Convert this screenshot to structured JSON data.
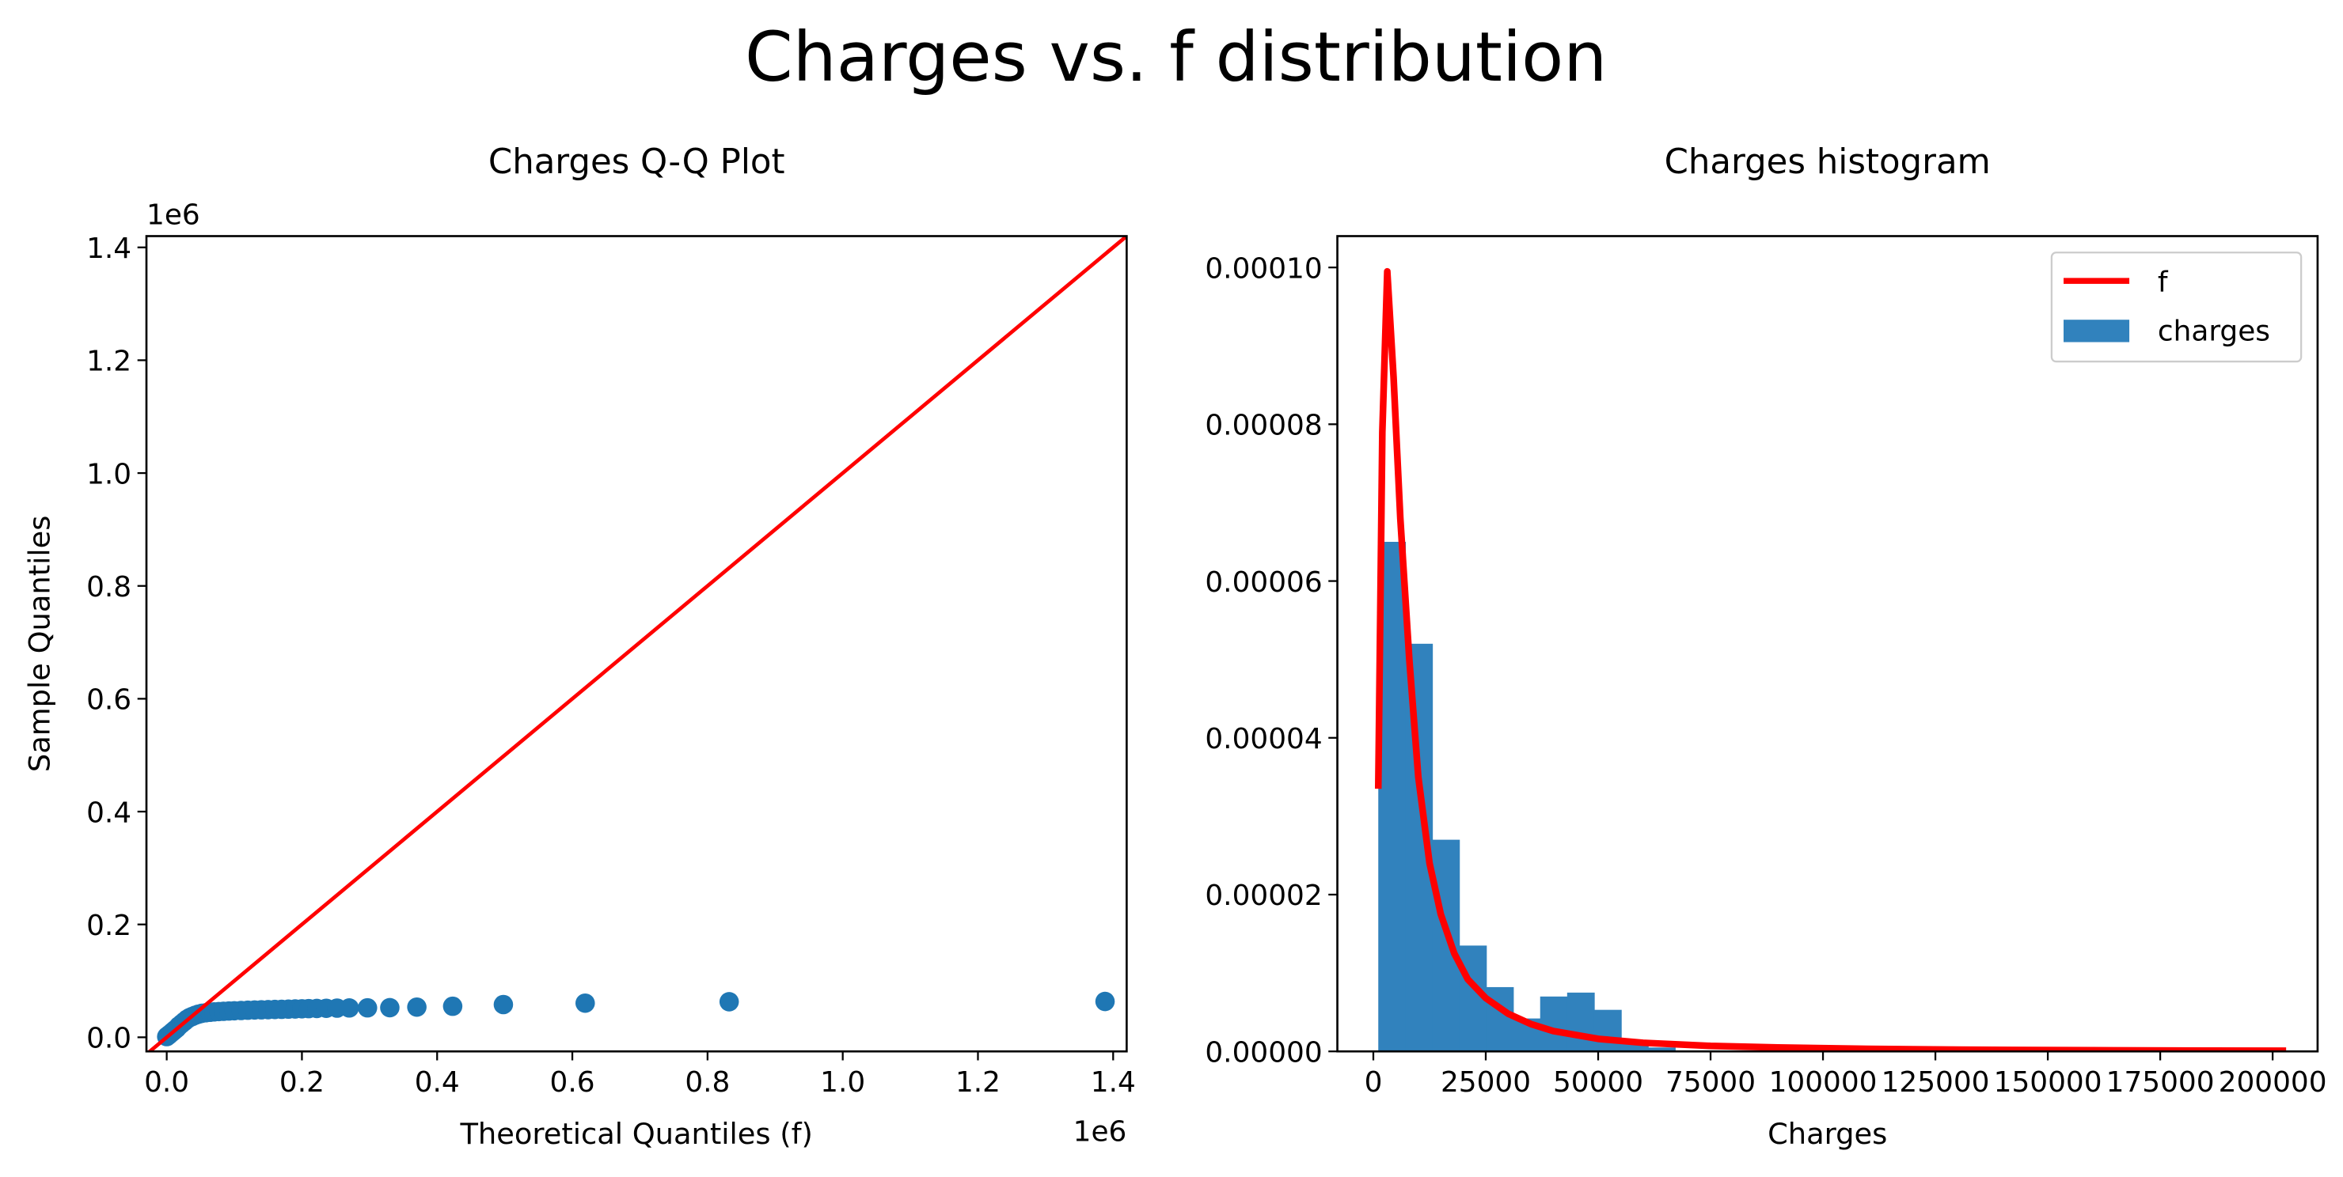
{
  "figure": {
    "title": "Charges vs. f distribution"
  },
  "colors": {
    "points": "#1f77b4",
    "line": "#ff0000",
    "bars": "#3182bd",
    "axis": "#000000"
  },
  "chart_data": [
    {
      "type": "scatter",
      "title": "Charges Q-Q Plot",
      "xlabel": "Theoretical Quantiles (f)",
      "ylabel": "Sample Quantiles",
      "x_multiplier": "1e6",
      "y_multiplier": "1e6",
      "xlim": [
        -30000,
        1420000
      ],
      "ylim": [
        -25000,
        1420000
      ],
      "xticks": [
        0,
        200000,
        400000,
        600000,
        800000,
        1000000,
        1200000,
        1400000
      ],
      "xtick_labels": [
        "0.0",
        "0.2",
        "0.4",
        "0.6",
        "0.8",
        "1.0",
        "1.2",
        "1.4"
      ],
      "yticks": [
        0,
        200000,
        400000,
        600000,
        800000,
        1000000,
        1200000,
        1400000
      ],
      "ytick_labels": [
        "0.0",
        "0.2",
        "0.4",
        "0.6",
        "0.8",
        "1.0",
        "1.2",
        "1.4"
      ],
      "grid": false,
      "reference_line": {
        "from": [
          -30000,
          -30000
        ],
        "to": [
          1420000,
          1420000
        ]
      },
      "points": [
        [
          0,
          1200
        ],
        [
          3000,
          4000
        ],
        [
          6000,
          7000
        ],
        [
          9000,
          10000
        ],
        [
          12000,
          13000
        ],
        [
          15000,
          16000
        ],
        [
          18000,
          20000
        ],
        [
          22000,
          24000
        ],
        [
          26000,
          28000
        ],
        [
          30000,
          32000
        ],
        [
          34000,
          35000
        ],
        [
          38000,
          37000
        ],
        [
          42000,
          39000
        ],
        [
          47000,
          41000
        ],
        [
          52000,
          42500
        ],
        [
          58000,
          43500
        ],
        [
          64000,
          44300
        ],
        [
          70000,
          45000
        ],
        [
          77000,
          45600
        ],
        [
          84000,
          46100
        ],
        [
          92000,
          46600
        ],
        [
          100000,
          47000
        ],
        [
          110000,
          47500
        ],
        [
          120000,
          48000
        ],
        [
          130000,
          48400
        ],
        [
          140000,
          48700
        ],
        [
          150000,
          49000
        ],
        [
          160000,
          49300
        ],
        [
          170000,
          49600
        ],
        [
          180000,
          49900
        ],
        [
          190000,
          50200
        ],
        [
          200000,
          50500
        ],
        [
          210000,
          50800
        ],
        [
          222000,
          51100
        ],
        [
          236000,
          51400
        ],
        [
          252000,
          51700
        ],
        [
          270000,
          52000
        ],
        [
          297000,
          52200
        ],
        [
          330000,
          52500
        ],
        [
          370000,
          53500
        ],
        [
          423000,
          55000
        ],
        [
          498000,
          58000
        ],
        [
          619000,
          60500
        ],
        [
          832000,
          63000
        ],
        [
          1388000,
          63500
        ]
      ]
    },
    {
      "type": "bar",
      "title": "Charges histogram",
      "xlabel": "Charges",
      "ylabel": "",
      "xlim": [
        -8000,
        210000
      ],
      "ylim": [
        0,
        0.000104
      ],
      "xticks": [
        0,
        25000,
        50000,
        75000,
        100000,
        125000,
        150000,
        175000,
        200000
      ],
      "xtick_labels": [
        "0",
        "25000",
        "50000",
        "75000",
        "100000",
        "125000",
        "150000",
        "175000",
        "200000"
      ],
      "yticks": [
        0,
        2e-05,
        4e-05,
        6e-05,
        8e-05,
        0.0001
      ],
      "ytick_labels": [
        "0.00000",
        "0.00002",
        "0.00004",
        "0.00006",
        "0.00008",
        "0.00010"
      ],
      "grid": false,
      "legend": {
        "placement": "upper right",
        "entries": [
          "f",
          "charges"
        ]
      },
      "histogram": {
        "name": "charges",
        "bins": [
          [
            1100,
            7100,
            6.5e-05
          ],
          [
            7100,
            13100,
            5.2e-05
          ],
          [
            13100,
            19100,
            2.7e-05
          ],
          [
            19100,
            25100,
            1.35e-05
          ],
          [
            25100,
            31100,
            8.2e-06
          ],
          [
            31100,
            37100,
            4.2e-06
          ],
          [
            37100,
            43100,
            7e-06
          ],
          [
            43100,
            49100,
            7.5e-06
          ],
          [
            49100,
            55100,
            5.3e-06
          ],
          [
            55100,
            61100,
            1.2e-06
          ],
          [
            61100,
            67100,
            5e-07
          ]
        ]
      },
      "series": [
        {
          "name": "f",
          "x": [
            1100,
            2000,
            3100,
            4500,
            6000,
            8000,
            10000,
            12500,
            15000,
            18000,
            21000,
            25000,
            30000,
            35000,
            40000,
            50000,
            60000,
            75000,
            90000,
            110000,
            130000,
            160000,
            185000,
            203000
          ],
          "y": [
            3.35e-05,
            7.9e-05,
            9.95e-05,
            8.6e-05,
            6.8e-05,
            5e-05,
            3.5e-05,
            2.4e-05,
            1.75e-05,
            1.25e-05,
            9.2e-06,
            6.8e-06,
            4.8e-06,
            3.5e-06,
            2.6e-06,
            1.6e-06,
            1.1e-06,
            7e-07,
            5e-07,
            3.2e-07,
            2.2e-07,
            1.4e-07,
            1e-07,
            8e-08
          ]
        }
      ]
    }
  ]
}
